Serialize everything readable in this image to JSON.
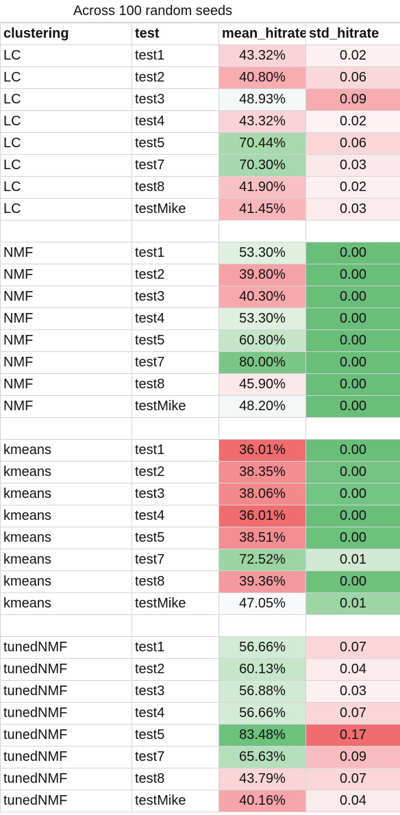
{
  "title": "Across 100 random seeds",
  "headers": [
    "clustering",
    "test",
    "mean_hitrate",
    "std_hitrate"
  ],
  "rows": [
    {
      "clustering": "LC",
      "test": "test1",
      "mean": "43.32%",
      "std": "0.02",
      "mean_color": "#f9d3d7",
      "std_color": "#fcf0f2"
    },
    {
      "clustering": "LC",
      "test": "test2",
      "mean": "40.80%",
      "std": "0.06",
      "mean_color": "#f7acb0",
      "std_color": "#fad7da"
    },
    {
      "clustering": "LC",
      "test": "test3",
      "mean": "48.93%",
      "std": "0.09",
      "mean_color": "#f3f7f5",
      "std_color": "#f6abaf"
    },
    {
      "clustering": "LC",
      "test": "test4",
      "mean": "43.32%",
      "std": "0.02",
      "mean_color": "#f9d3d7",
      "std_color": "#fcf1f3"
    },
    {
      "clustering": "LC",
      "test": "test5",
      "mean": "70.44%",
      "std": "0.06",
      "mean_color": "#a7d9ad",
      "std_color": "#fad6d9"
    },
    {
      "clustering": "LC",
      "test": "test7",
      "mean": "70.30%",
      "std": "0.03",
      "mean_color": "#a8d9ae",
      "std_color": "#fbe8ea"
    },
    {
      "clustering": "LC",
      "test": "test8",
      "mean": "41.90%",
      "std": "0.02",
      "mean_color": "#f8c0c3",
      "std_color": "#fcf1f2"
    },
    {
      "clustering": "LC",
      "test": "testMike",
      "mean": "41.45%",
      "std": "0.03",
      "mean_color": "#f8b6ba",
      "std_color": "#fbebed"
    },
    {
      "clustering": "",
      "test": "",
      "mean": "",
      "std": "",
      "mean_color": "#ffffff",
      "std_color": "#ffffff"
    },
    {
      "clustering": "NMF",
      "test": "test1",
      "mean": "53.30%",
      "std": "0.00",
      "mean_color": "#dff0e1",
      "std_color": "#69bf7a"
    },
    {
      "clustering": "NMF",
      "test": "test2",
      "mean": "39.80%",
      "std": "0.00",
      "mean_color": "#f5a1a6",
      "std_color": "#69bf7a"
    },
    {
      "clustering": "NMF",
      "test": "test3",
      "mean": "40.30%",
      "std": "0.00",
      "mean_color": "#f6a8ac",
      "std_color": "#69bf7a"
    },
    {
      "clustering": "NMF",
      "test": "test4",
      "mean": "53.30%",
      "std": "0.00",
      "mean_color": "#dff0e1",
      "std_color": "#69bf7a"
    },
    {
      "clustering": "NMF",
      "test": "test5",
      "mean": "60.80%",
      "std": "0.00",
      "mean_color": "#c5e5c9",
      "std_color": "#69bf7a"
    },
    {
      "clustering": "NMF",
      "test": "test7",
      "mean": "80.00%",
      "std": "0.00",
      "mean_color": "#79c687",
      "std_color": "#69bf7a"
    },
    {
      "clustering": "NMF",
      "test": "test8",
      "mean": "45.90%",
      "std": "0.00",
      "mean_color": "#fbe8eb",
      "std_color": "#69bf7a"
    },
    {
      "clustering": "NMF",
      "test": "testMike",
      "mean": "48.20%",
      "std": "0.00",
      "mean_color": "#f3f7f5",
      "std_color": "#69bf7a"
    },
    {
      "clustering": "",
      "test": "",
      "mean": "",
      "std": "",
      "mean_color": "#ffffff",
      "std_color": "#ffffff"
    },
    {
      "clustering": "kmeans",
      "test": "test1",
      "mean": "36.01%",
      "std": "0.00",
      "mean_color": "#f06c6f",
      "std_color": "#69bf7a"
    },
    {
      "clustering": "kmeans",
      "test": "test2",
      "mean": "38.35%",
      "std": "0.00",
      "mean_color": "#f38d91",
      "std_color": "#74c383"
    },
    {
      "clustering": "kmeans",
      "test": "test3",
      "mean": "38.06%",
      "std": "0.00",
      "mean_color": "#f2898d",
      "std_color": "#73c382"
    },
    {
      "clustering": "kmeans",
      "test": "test4",
      "mean": "36.01%",
      "std": "0.00",
      "mean_color": "#f06c6f",
      "std_color": "#69bf7a"
    },
    {
      "clustering": "kmeans",
      "test": "test5",
      "mean": "38.51%",
      "std": "0.00",
      "mean_color": "#f38f93",
      "std_color": "#6cc17c"
    },
    {
      "clustering": "kmeans",
      "test": "test7",
      "mean": "72.52%",
      "std": "0.01",
      "mean_color": "#9dd4a4",
      "std_color": "#cfe9d3"
    },
    {
      "clustering": "kmeans",
      "test": "test8",
      "mean": "39.36%",
      "std": "0.00",
      "mean_color": "#f49a9f",
      "std_color": "#6dc17d"
    },
    {
      "clustering": "kmeans",
      "test": "testMike",
      "mean": "47.05%",
      "std": "0.01",
      "mean_color": "#f7f9fb",
      "std_color": "#9dd5a5"
    },
    {
      "clustering": "",
      "test": "",
      "mean": "",
      "std": "",
      "mean_color": "#ffffff",
      "std_color": "#ffffff"
    },
    {
      "clustering": "tunedNMF",
      "test": "test1",
      "mean": "56.66%",
      "std": "0.07",
      "mean_color": "#d2ebd5",
      "std_color": "#fad6d9"
    },
    {
      "clustering": "tunedNMF",
      "test": "test2",
      "mean": "60.13%",
      "std": "0.04",
      "mean_color": "#c6e6ca",
      "std_color": "#fbebed"
    },
    {
      "clustering": "tunedNMF",
      "test": "test3",
      "mean": "56.88%",
      "std": "0.03",
      "mean_color": "#d1ead4",
      "std_color": "#fcf0f2"
    },
    {
      "clustering": "tunedNMF",
      "test": "test4",
      "mean": "56.66%",
      "std": "0.07",
      "mean_color": "#d2ebd5",
      "std_color": "#fad6d9"
    },
    {
      "clustering": "tunedNMF",
      "test": "test5",
      "mean": "83.48%",
      "std": "0.17",
      "mean_color": "#6cc17c",
      "std_color": "#f06c6f"
    },
    {
      "clustering": "tunedNMF",
      "test": "test7",
      "mean": "65.63%",
      "std": "0.09",
      "mean_color": "#b4dfba",
      "std_color": "#f8bcc0"
    },
    {
      "clustering": "tunedNMF",
      "test": "test8",
      "mean": "43.79%",
      "std": "0.07",
      "mean_color": "#fad5d8",
      "std_color": "#fad6d9"
    },
    {
      "clustering": "tunedNMF",
      "test": "testMike",
      "mean": "40.16%",
      "std": "0.04",
      "mean_color": "#f6a6aa",
      "std_color": "#fbebed"
    }
  ]
}
